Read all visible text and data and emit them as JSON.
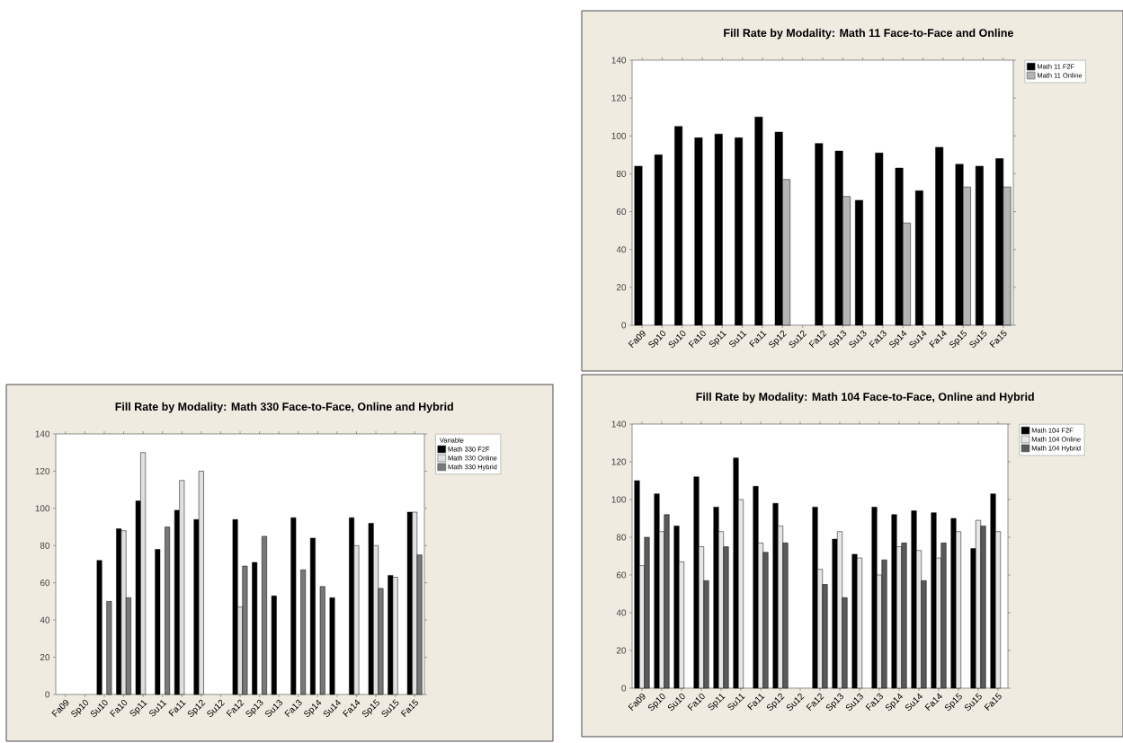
{
  "chart_data": [
    {
      "type": "bar",
      "title": "Fill Rate by Modality:  Math 11 Face-to-Face and Online",
      "categories": [
        "Fa09",
        "Sp10",
        "Su10",
        "Fa10",
        "Sp11",
        "Su11",
        "Fa11",
        "Sp12",
        "Su12",
        "Fa12",
        "Sp13",
        "Su13",
        "Fa13",
        "Sp14",
        "Su14",
        "Fa14",
        "Sp15",
        "Su15",
        "Fa15"
      ],
      "series": [
        {
          "name": "Math 11 F2F",
          "color": "#000000",
          "values": [
            84,
            90,
            105,
            99,
            101,
            99,
            110,
            102,
            null,
            96,
            92,
            66,
            91,
            83,
            71,
            94,
            85,
            84,
            88
          ]
        },
        {
          "name": "Math 11 Online",
          "color": "#b4b4b4",
          "values": [
            null,
            null,
            null,
            null,
            null,
            null,
            null,
            77,
            null,
            null,
            68,
            null,
            null,
            54,
            null,
            null,
            73,
            null,
            73
          ]
        }
      ],
      "ylim": [
        0,
        140
      ],
      "yticks": [
        0,
        20,
        40,
        60,
        80,
        100,
        120,
        140
      ],
      "legend": "right"
    },
    {
      "type": "bar",
      "title": "Fill Rate by Modality:  Math 330 Face-to-Face, Online and Hybrid",
      "categories": [
        "Fa09",
        "Sp10",
        "Su10",
        "Fa10",
        "Sp11",
        "Su11",
        "Fa11",
        "Sp12",
        "Su12",
        "Fa12",
        "Sp13",
        "Su13",
        "Fa13",
        "Sp14",
        "Su14",
        "Fa14",
        "Sp15",
        "Su15",
        "Fa15"
      ],
      "legend_title": "Variable",
      "series": [
        {
          "name": "Math 330 F2F",
          "color": "#000000",
          "values": [
            null,
            null,
            72,
            89,
            104,
            78,
            99,
            94,
            null,
            94,
            71,
            53,
            95,
            84,
            52,
            95,
            92,
            64,
            98
          ]
        },
        {
          "name": "Math 330 Online",
          "color": "#e0e0e0",
          "values": [
            null,
            null,
            null,
            88,
            130,
            null,
            115,
            120,
            null,
            47,
            null,
            null,
            null,
            null,
            null,
            80,
            80,
            63,
            98
          ]
        },
        {
          "name": "Math 330 Hybrid",
          "color": "#787878",
          "values": [
            null,
            null,
            50,
            52,
            null,
            90,
            null,
            null,
            null,
            69,
            85,
            null,
            67,
            58,
            null,
            null,
            57,
            null,
            75
          ]
        }
      ],
      "ylim": [
        0,
        140
      ],
      "yticks": [
        0,
        20,
        40,
        60,
        80,
        100,
        120,
        140
      ],
      "legend": "right"
    },
    {
      "type": "bar",
      "title": "Fill Rate by Modality:  Math 104 Face-to-Face, Online and Hybrid",
      "categories": [
        "Fa09",
        "Sp10",
        "Su10",
        "Fa10",
        "Sp11",
        "Su11",
        "Fa11",
        "Sp12",
        "Su12",
        "Fa12",
        "Sp13",
        "Su13",
        "Fa13",
        "Sp14",
        "Su14",
        "Fa14",
        "Sp15",
        "Su15",
        "Fa15"
      ],
      "series": [
        {
          "name": "Math 104 F2F",
          "color": "#000000",
          "values": [
            110,
            103,
            86,
            112,
            96,
            122,
            107,
            98,
            null,
            96,
            79,
            71,
            96,
            92,
            94,
            93,
            90,
            74,
            103
          ]
        },
        {
          "name": "Math 104 Online",
          "color": "#e6e6e6",
          "values": [
            65,
            83,
            67,
            75,
            83,
            100,
            77,
            86,
            null,
            63,
            83,
            69,
            60,
            75,
            73,
            69,
            83,
            89,
            83
          ]
        },
        {
          "name": "Math 104 Hybrid",
          "color": "#5a5a5a",
          "values": [
            80,
            92,
            null,
            57,
            75,
            null,
            72,
            77,
            null,
            55,
            48,
            null,
            68,
            77,
            57,
            77,
            null,
            86,
            null
          ]
        }
      ],
      "ylim": [
        0,
        140
      ],
      "yticks": [
        0,
        20,
        40,
        60,
        80,
        100,
        120,
        140
      ],
      "legend": "right"
    }
  ]
}
